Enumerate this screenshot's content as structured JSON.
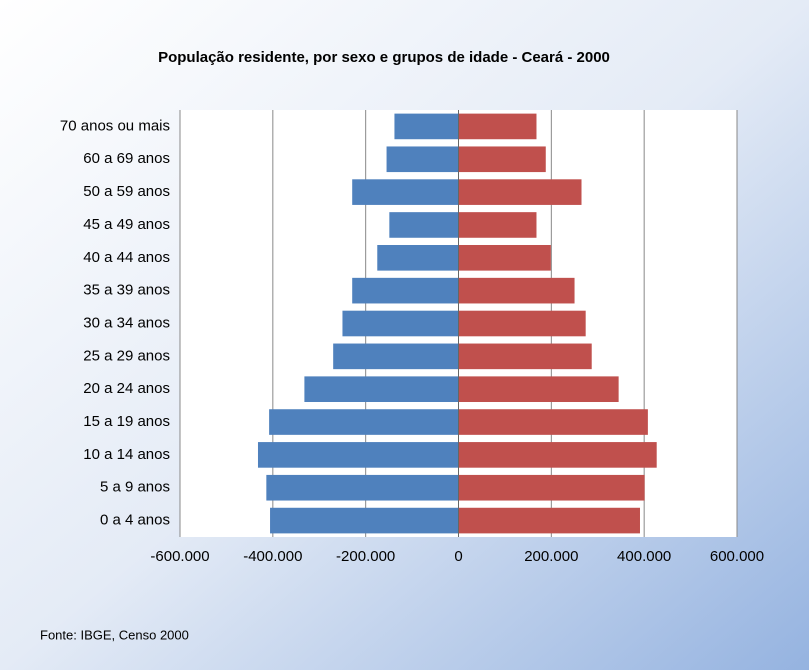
{
  "chart_data": {
    "type": "bar",
    "orientation": "horizontal",
    "title": "População residente, por sexo e grupos de idade - Ceará - 2000",
    "categories": [
      "70 anos ou mais",
      "60 a 69 anos",
      "50 a 59 anos",
      "45 a 49 anos",
      "40 a 44 anos",
      "35 a 39 anos",
      "30 a 34 anos",
      "25 a 29 anos",
      "20 a 24 anos",
      "15 a 19 anos",
      "10 a 14 anos",
      "5 a 9 anos",
      "0 a 4 anos"
    ],
    "series": [
      {
        "color": "#4f81bd",
        "values": [
          -138000,
          -155000,
          -229000,
          -149000,
          -175000,
          -229000,
          -250000,
          -270000,
          -332000,
          -408000,
          -432000,
          -414000,
          -406000
        ]
      },
      {
        "color": "#c0504d",
        "values": [
          168000,
          188000,
          265000,
          168000,
          199000,
          250000,
          274000,
          287000,
          345000,
          408000,
          427000,
          401000,
          391000
        ]
      }
    ],
    "xlim": [
      -600000,
      600000
    ],
    "xticks": [
      {
        "value": -600000,
        "label": "-600.000"
      },
      {
        "value": -400000,
        "label": "-400.000"
      },
      {
        "value": -200000,
        "label": "-200.000"
      },
      0,
      {
        "value": 200000,
        "label": "200.000"
      },
      {
        "value": 400000,
        "label": "400.000"
      },
      {
        "value": 600000,
        "label": "600.000"
      }
    ],
    "grid": true,
    "source": "Fonte: IBGE, Censo 2000"
  }
}
